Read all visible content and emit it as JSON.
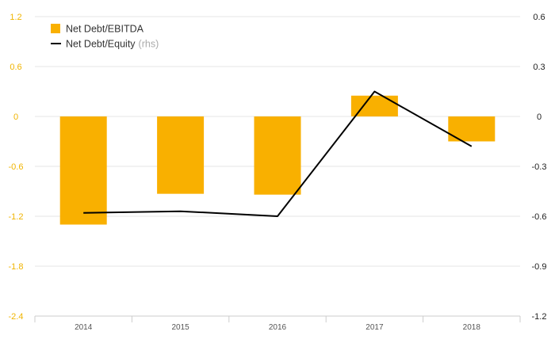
{
  "chart_data": {
    "type": "bar+line",
    "categories": [
      "2014",
      "2015",
      "2016",
      "2017",
      "2018"
    ],
    "series": [
      {
        "name": "Net Debt/EBITDA",
        "type": "bar",
        "axis": "left",
        "color": "#f9b000",
        "values": [
          -1.3,
          -0.93,
          -0.94,
          0.25,
          -0.3
        ]
      },
      {
        "name": "Net Debt/Equity",
        "name_suffix": "(rhs)",
        "type": "line",
        "axis": "right",
        "color": "#000000",
        "values": [
          -0.58,
          -0.57,
          -0.6,
          0.15,
          -0.18
        ]
      }
    ],
    "left_axis": {
      "ylim": [
        -2.4,
        1.2
      ],
      "ticks": [
        1.2,
        0.6,
        0,
        -0.6,
        -1.2,
        -1.8,
        -2.4
      ],
      "tick_labels": [
        "1.2",
        "0.6",
        "0",
        "-0.6",
        "-1.2",
        "-1.8",
        "-2.4"
      ],
      "color": "#f0b400"
    },
    "right_axis": {
      "ylim": [
        -1.2,
        0.6
      ],
      "ticks": [
        0.6,
        0.3,
        0,
        -0.3,
        -0.6,
        -0.9,
        -1.2
      ],
      "tick_labels": [
        "0.6",
        "0.3",
        "0",
        "-0.3",
        "-0.6",
        "-0.9",
        "-1.2"
      ]
    },
    "legend_position": "top-left",
    "grid": true,
    "title": "",
    "xlabel": "",
    "ylabel": ""
  }
}
